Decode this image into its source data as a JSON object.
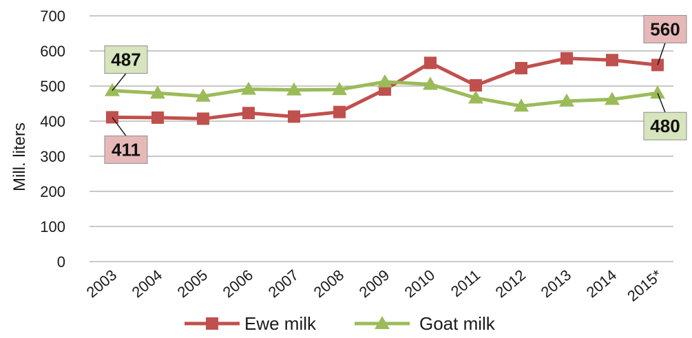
{
  "chart_data": {
    "type": "line",
    "title": "",
    "xlabel": "",
    "ylabel": "Mill. liters",
    "ylim": [
      0,
      700
    ],
    "yticks": [
      0,
      100,
      200,
      300,
      400,
      500,
      600,
      700
    ],
    "grid": true,
    "legend_position": "bottom",
    "categories": [
      "2003",
      "2004",
      "2005",
      "2006",
      "2007",
      "2008",
      "2009",
      "2010",
      "2011",
      "2012",
      "2013",
      "2014",
      "2015*"
    ],
    "series": [
      {
        "name": "Ewe milk",
        "color": "#c0504d",
        "marker": "square",
        "values": [
          411,
          410,
          407,
          423,
          413,
          426,
          490,
          566,
          502,
          551,
          579,
          574,
          560
        ]
      },
      {
        "name": "Goat milk",
        "color": "#9bbb59",
        "marker": "triangle",
        "values": [
          487,
          480,
          471,
          491,
          489,
          490,
          512,
          505,
          466,
          443,
          457,
          462,
          480
        ]
      }
    ],
    "annotations": [
      {
        "series": 0,
        "index": 0,
        "text": "411",
        "placement": "below",
        "box_color": "#e6b9b8"
      },
      {
        "series": 1,
        "index": 0,
        "text": "487",
        "placement": "above",
        "box_color": "#d7e4bd"
      },
      {
        "series": 0,
        "index": 12,
        "text": "560",
        "placement": "above",
        "box_color": "#e6b9b8"
      },
      {
        "series": 1,
        "index": 12,
        "text": "480",
        "placement": "below",
        "box_color": "#d7e4bd"
      }
    ]
  }
}
